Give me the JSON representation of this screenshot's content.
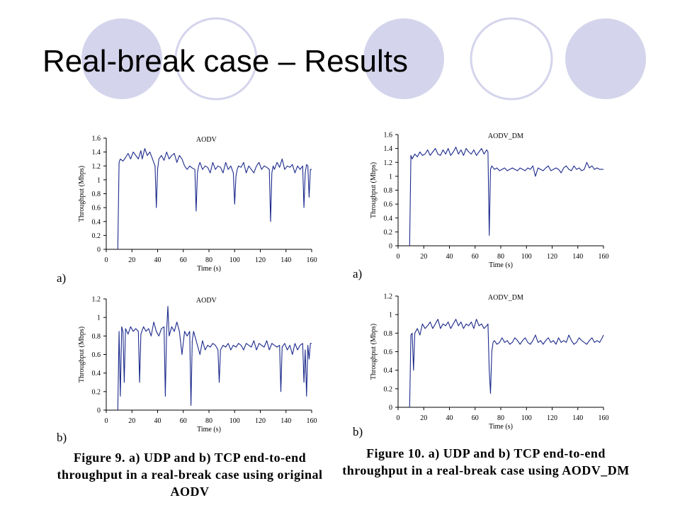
{
  "slide": {
    "title": "Real-break case – Results",
    "circle_fill": "#d4d4ec",
    "circle_stroke": "#d4d4ec"
  },
  "captions": {
    "fig9": "Figure 9. a) UDP and b) TCP end-to-end throughput in a real-break case using original AODV",
    "fig10": "Figure 10. a) UDP and b) TCP end-to-end throughput in a real-break case using AODV_DM"
  },
  "chart_data": [
    {
      "id": "fig9a",
      "type": "line",
      "panel_label": "a)",
      "title": "AODV",
      "xlabel": "Time (s)",
      "ylabel": "Throughput (Mbps)",
      "xlim": [
        0,
        160
      ],
      "ylim": [
        0,
        1.6
      ],
      "xticks": [
        0,
        20,
        40,
        60,
        80,
        100,
        120,
        140,
        160
      ],
      "yticks": [
        0,
        0.2,
        0.4,
        0.6,
        0.8,
        1,
        1.2,
        1.4,
        1.6
      ],
      "ytick_labels": [
        "0",
        "0.2",
        "0.4",
        "0.6",
        "0.8",
        "1",
        "1.2",
        "1.4",
        "1.6"
      ],
      "line_color": "#1c2a8c",
      "series": [
        {
          "x": [
            9,
            10,
            11,
            13,
            15,
            17,
            19,
            21,
            23,
            25,
            27,
            28,
            30,
            32,
            34,
            36,
            38,
            39,
            40,
            41,
            43,
            45,
            47,
            49,
            51,
            53,
            55,
            57,
            59,
            61,
            63,
            65,
            67,
            69,
            70,
            71,
            72,
            73,
            75,
            77,
            79,
            81,
            83,
            85,
            87,
            89,
            91,
            93,
            95,
            97,
            99,
            100,
            101,
            102,
            103,
            105,
            107,
            109,
            111,
            113,
            115,
            117,
            119,
            121,
            123,
            125,
            127,
            128,
            129,
            130,
            131,
            133,
            135,
            137,
            139,
            141,
            143,
            145,
            147,
            149,
            151,
            153,
            154,
            155,
            156,
            157,
            158,
            159,
            160
          ],
          "y": [
            0,
            1.25,
            1.3,
            1.27,
            1.32,
            1.38,
            1.3,
            1.4,
            1.35,
            1.3,
            1.42,
            1.3,
            1.45,
            1.35,
            1.4,
            1.3,
            1.2,
            0.6,
            1.15,
            1.3,
            1.35,
            1.28,
            1.4,
            1.3,
            1.35,
            1.38,
            1.25,
            1.35,
            1.3,
            1.2,
            1.15,
            1.2,
            1.17,
            1.15,
            0.55,
            1.1,
            1.2,
            1.25,
            1.15,
            1.2,
            1.18,
            1.1,
            1.25,
            1.15,
            1.2,
            1.18,
            1.1,
            1.25,
            1.15,
            1.2,
            1.1,
            0.65,
            1.05,
            1.15,
            1.2,
            1.18,
            1.25,
            1.1,
            1.2,
            1.15,
            1.1,
            1.2,
            1.25,
            1.15,
            1.2,
            1.18,
            1.15,
            0.4,
            1.1,
            1.2,
            1.15,
            1.25,
            1.18,
            1.3,
            1.15,
            1.2,
            1.18,
            1.22,
            1.1,
            1.2,
            1.15,
            1.2,
            0.6,
            1.1,
            1.22,
            1.2,
            0.75,
            1.15,
            1.15
          ]
        }
      ]
    },
    {
      "id": "fig9b",
      "type": "line",
      "panel_label": "b)",
      "title": "AODV",
      "xlabel": "Time (s)",
      "ylabel": "Throughput (Mbps)",
      "xlim": [
        0,
        160
      ],
      "ylim": [
        0,
        1.2
      ],
      "xticks": [
        0,
        20,
        40,
        60,
        80,
        100,
        120,
        140,
        160
      ],
      "yticks": [
        0,
        0.2,
        0.4,
        0.6,
        0.8,
        1,
        1.2
      ],
      "ytick_labels": [
        "0",
        "0.2",
        "0.4",
        "0.6",
        "0.8",
        "1",
        "1.2"
      ],
      "line_color": "#1c2a8c",
      "series": [
        {
          "x": [
            9,
            10,
            11,
            12,
            13,
            14,
            15,
            17,
            19,
            21,
            23,
            25,
            26,
            27,
            29,
            31,
            33,
            35,
            37,
            39,
            41,
            43,
            45,
            46,
            47,
            48,
            49,
            51,
            53,
            55,
            57,
            59,
            61,
            63,
            65,
            66,
            67,
            68,
            69,
            71,
            73,
            75,
            77,
            79,
            81,
            83,
            85,
            87,
            88,
            89,
            91,
            93,
            95,
            97,
            99,
            101,
            103,
            105,
            107,
            109,
            111,
            113,
            115,
            117,
            119,
            121,
            123,
            125,
            127,
            129,
            131,
            133,
            135,
            136,
            137,
            139,
            141,
            143,
            145,
            147,
            149,
            151,
            153,
            154,
            155,
            156,
            157,
            158,
            159,
            160
          ],
          "y": [
            0,
            0.85,
            0.15,
            0.9,
            0.85,
            0.3,
            0.88,
            0.82,
            0.9,
            0.85,
            0.88,
            0.85,
            0.3,
            0.82,
            0.9,
            0.85,
            0.88,
            0.8,
            0.95,
            0.85,
            0.8,
            0.88,
            0.9,
            0.15,
            0.85,
            1.12,
            0.8,
            0.9,
            0.85,
            0.95,
            0.85,
            0.6,
            0.85,
            0.8,
            0.85,
            0.05,
            0.75,
            0.85,
            0.8,
            0.7,
            0.6,
            0.75,
            0.65,
            0.7,
            0.68,
            0.72,
            0.7,
            0.65,
            0.3,
            0.65,
            0.7,
            0.68,
            0.72,
            0.65,
            0.7,
            0.68,
            0.72,
            0.7,
            0.65,
            0.72,
            0.7,
            0.68,
            0.75,
            0.65,
            0.72,
            0.7,
            0.68,
            0.75,
            0.65,
            0.72,
            0.7,
            0.68,
            0.7,
            0.2,
            0.68,
            0.72,
            0.65,
            0.7,
            0.6,
            0.72,
            0.65,
            0.7,
            0.72,
            0.3,
            0.65,
            0.15,
            0.7,
            0.55,
            0.72,
            0.72
          ]
        }
      ]
    },
    {
      "id": "fig10a",
      "type": "line",
      "panel_label": "a)",
      "title": "AODV_DM",
      "xlabel": "Time (s)",
      "ylabel": "Throughput (Mbps)",
      "xlim": [
        0,
        160
      ],
      "ylim": [
        0,
        1.6
      ],
      "xticks": [
        0,
        20,
        40,
        60,
        80,
        100,
        120,
        140,
        160
      ],
      "yticks": [
        0,
        0.2,
        0.4,
        0.6,
        0.8,
        1,
        1.2,
        1.4,
        1.6
      ],
      "ytick_labels": [
        "0",
        "0.2",
        "0.4",
        "0.6",
        "0.8",
        "1",
        "1.2",
        "1.4",
        "1.6"
      ],
      "line_color": "#1c2a8c",
      "series": [
        {
          "x": [
            9,
            10,
            11,
            13,
            15,
            17,
            19,
            21,
            23,
            25,
            27,
            29,
            31,
            33,
            35,
            37,
            39,
            41,
            43,
            45,
            47,
            49,
            51,
            53,
            55,
            57,
            59,
            61,
            63,
            65,
            67,
            69,
            70,
            71,
            72,
            73,
            75,
            77,
            79,
            81,
            83,
            85,
            87,
            89,
            91,
            93,
            95,
            97,
            99,
            101,
            103,
            105,
            107,
            109,
            111,
            113,
            115,
            117,
            119,
            121,
            123,
            125,
            127,
            129,
            131,
            133,
            135,
            137,
            139,
            141,
            143,
            145,
            147,
            149,
            151,
            153,
            155,
            157,
            159,
            160
          ],
          "y": [
            0,
            1.3,
            1.25,
            1.32,
            1.28,
            1.35,
            1.3,
            1.32,
            1.38,
            1.3,
            1.35,
            1.4,
            1.32,
            1.3,
            1.38,
            1.32,
            1.4,
            1.3,
            1.35,
            1.42,
            1.32,
            1.38,
            1.3,
            1.4,
            1.35,
            1.32,
            1.38,
            1.3,
            1.35,
            1.4,
            1.32,
            1.38,
            1.35,
            0.15,
            1.1,
            1.15,
            1.1,
            1.12,
            1.08,
            1.1,
            1.12,
            1.08,
            1.1,
            1.12,
            1.1,
            1.08,
            1.12,
            1.1,
            1.08,
            1.12,
            1.1,
            1.15,
            1.0,
            1.12,
            1.1,
            1.08,
            1.12,
            1.15,
            1.08,
            1.1,
            1.12,
            1.1,
            1.05,
            1.12,
            1.15,
            1.1,
            1.08,
            1.15,
            1.1,
            1.12,
            1.08,
            1.1,
            1.2,
            1.12,
            1.15,
            1.1,
            1.12,
            1.1,
            1.1,
            1.1
          ]
        }
      ]
    },
    {
      "id": "fig10b",
      "type": "line",
      "panel_label": "b)",
      "title": "AODV_DM",
      "xlabel": "Time (s)",
      "ylabel": "Throughput (Mbps)",
      "xlim": [
        0,
        160
      ],
      "ylim": [
        0,
        1.2
      ],
      "xticks": [
        0,
        20,
        40,
        60,
        80,
        100,
        120,
        140,
        160
      ],
      "yticks": [
        0,
        0.2,
        0.4,
        0.6,
        0.8,
        1,
        1.2
      ],
      "ytick_labels": [
        "0",
        "0.2",
        "0.4",
        "0.6",
        "0.8",
        "1",
        "1.2"
      ],
      "line_color": "#1c2a8c",
      "series": [
        {
          "x": [
            9,
            10,
            11,
            12,
            13,
            15,
            17,
            19,
            21,
            23,
            25,
            27,
            29,
            31,
            33,
            35,
            37,
            39,
            41,
            43,
            45,
            47,
            49,
            51,
            53,
            55,
            57,
            59,
            61,
            63,
            65,
            67,
            69,
            70,
            71,
            72,
            73,
            74,
            75,
            77,
            79,
            81,
            83,
            85,
            87,
            89,
            91,
            93,
            95,
            97,
            99,
            101,
            103,
            105,
            107,
            109,
            111,
            113,
            115,
            117,
            119,
            121,
            123,
            125,
            127,
            129,
            131,
            133,
            135,
            137,
            139,
            141,
            143,
            145,
            147,
            149,
            151,
            153,
            155,
            157,
            159,
            160
          ],
          "y": [
            0,
            0.78,
            0.8,
            0.4,
            0.8,
            0.85,
            0.78,
            0.9,
            0.85,
            0.88,
            0.92,
            0.85,
            0.9,
            0.95,
            0.85,
            0.9,
            0.88,
            0.92,
            0.85,
            0.9,
            0.95,
            0.88,
            0.92,
            0.85,
            0.9,
            0.88,
            0.92,
            0.85,
            0.95,
            0.88,
            0.9,
            0.85,
            0.88,
            0.9,
            0.4,
            0.15,
            0.6,
            0.7,
            0.72,
            0.68,
            0.7,
            0.75,
            0.7,
            0.72,
            0.68,
            0.7,
            0.75,
            0.72,
            0.68,
            0.72,
            0.75,
            0.7,
            0.68,
            0.72,
            0.78,
            0.7,
            0.72,
            0.68,
            0.72,
            0.75,
            0.7,
            0.72,
            0.68,
            0.75,
            0.7,
            0.72,
            0.7,
            0.78,
            0.72,
            0.68,
            0.7,
            0.75,
            0.72,
            0.7,
            0.68,
            0.72,
            0.75,
            0.7,
            0.72,
            0.7,
            0.75,
            0.78
          ]
        }
      ]
    }
  ]
}
